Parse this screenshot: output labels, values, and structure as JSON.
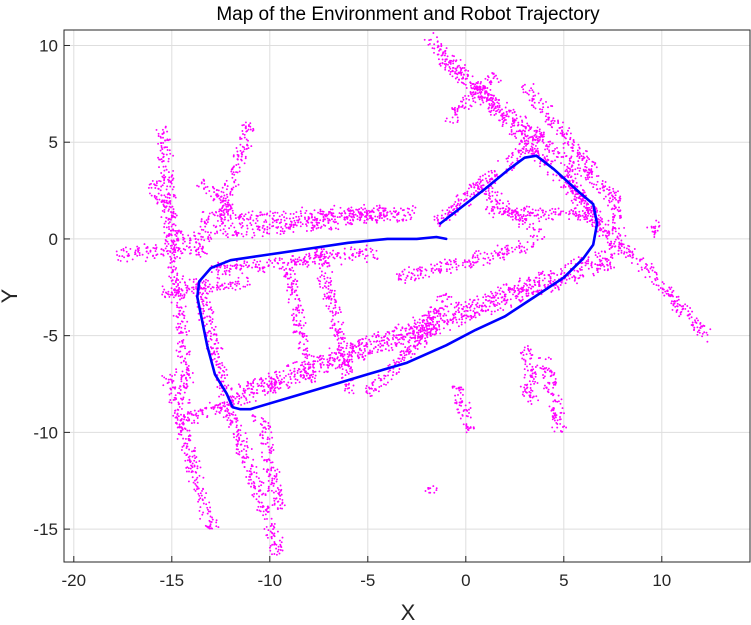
{
  "chart_data": {
    "type": "scatter",
    "title": "Map of the Environment and Robot Trajectory",
    "xlabel": "X",
    "ylabel": "Y",
    "xlim": [
      -20.5,
      14.5
    ],
    "ylim": [
      -16.7,
      10.8
    ],
    "xticks": [
      -20,
      -15,
      -10,
      -5,
      0,
      5,
      10
    ],
    "yticks": [
      10,
      5,
      0,
      -5,
      -10,
      -15
    ],
    "grid": true,
    "legend": "none",
    "series": [
      {
        "color": "#ff00ff",
        "marker": "dot",
        "walls": [
          [
            [
              -17.8,
              -0.8
            ],
            [
              -13.2,
              -0.5
            ]
          ],
          [
            [
              -14.8,
              0.1
            ],
            [
              -6.5,
              0.9
            ]
          ],
          [
            [
              -13.5,
              1.0
            ],
            [
              -4.0,
              1.4
            ]
          ],
          [
            [
              -6.5,
              1.0
            ],
            [
              -2.5,
              1.4
            ]
          ],
          [
            [
              -13.0,
              -1.6
            ],
            [
              -4.5,
              -0.7
            ]
          ],
          [
            [
              -15.5,
              -2.8
            ],
            [
              -11.0,
              -2.2
            ]
          ],
          [
            [
              -15.5,
              5.8
            ],
            [
              -14.2,
              -8.5
            ]
          ],
          [
            [
              -15.2,
              -7.0
            ],
            [
              -13.0,
              -15.0
            ]
          ],
          [
            [
              -13.7,
              -2.0
            ],
            [
              -12.0,
              -9.2
            ]
          ],
          [
            [
              -11.5,
              -7.8
            ],
            [
              8.0,
              -0.5
            ]
          ],
          [
            [
              -14.8,
              -9.5
            ],
            [
              7.5,
              -1.2
            ]
          ],
          [
            [
              -12.0,
              -9.0
            ],
            [
              -9.5,
              -16.3
            ]
          ],
          [
            [
              -10.5,
              -9.0
            ],
            [
              -9.5,
              -14.0
            ]
          ],
          [
            [
              -7.5,
              -0.4
            ],
            [
              -5.8,
              -8.0
            ]
          ],
          [
            [
              -9.0,
              -1.5
            ],
            [
              -8.0,
              -7.5
            ]
          ],
          [
            [
              -3.5,
              -2.0
            ],
            [
              3.5,
              -0.3
            ]
          ],
          [
            [
              -5.0,
              -8.0
            ],
            [
              -1.5,
              -4.5
            ]
          ],
          [
            [
              -3.0,
              -6.0
            ],
            [
              -1.0,
              -2.8
            ]
          ],
          [
            [
              -2.0,
              10.6
            ],
            [
              12.5,
              -5.2
            ]
          ],
          [
            [
              -1.2,
              9.2
            ],
            [
              7.5,
              2.2
            ]
          ],
          [
            [
              -1.5,
              0.8
            ],
            [
              4.0,
              5.5
            ]
          ],
          [
            [
              1.0,
              1.5
            ],
            [
              6.5,
              1.2
            ]
          ],
          [
            [
              3.0,
              8.0
            ],
            [
              6.5,
              3.5
            ]
          ],
          [
            [
              -1.0,
              6.0
            ],
            [
              1.5,
              8.5
            ]
          ],
          [
            [
              0.5,
              3.0
            ],
            [
              4.0,
              0.0
            ]
          ],
          [
            [
              5.0,
              3.5
            ],
            [
              7.5,
              -0.5
            ]
          ],
          [
            [
              7.5,
              2.5
            ],
            [
              7.8,
              0.5
            ]
          ],
          [
            [
              9.5,
              0.8
            ],
            [
              10.0,
              0.2
            ]
          ],
          [
            [
              -11.0,
              6.0
            ],
            [
              -12.5,
              1.0
            ]
          ],
          [
            [
              -16.0,
              3.0
            ],
            [
              -15.0,
              1.0
            ]
          ],
          [
            [
              -13.5,
              3.0
            ],
            [
              -12.0,
              1.5
            ]
          ],
          [
            [
              -0.5,
              -7.5
            ],
            [
              0.2,
              -10.0
            ]
          ],
          [
            [
              3.0,
              -5.5
            ],
            [
              3.5,
              -7.5
            ]
          ],
          [
            [
              4.0,
              -6.0
            ],
            [
              4.8,
              -10.0
            ]
          ],
          [
            [
              3.0,
              -7.5
            ],
            [
              3.5,
              -8.5
            ]
          ],
          [
            [
              -1.8,
              -12.8
            ],
            [
              -1.6,
              -13.2
            ]
          ]
        ]
      },
      {
        "color": "#0000ff",
        "marker": "line",
        "x": [
          -1.3,
          -0.4,
          1.0,
          2.2,
          3.0,
          3.6,
          4.5,
          5.8,
          6.5,
          6.7,
          6.5,
          6.0,
          5.0,
          3.5,
          2.0,
          0.5,
          -1.0,
          -3.0,
          -5.0,
          -7.0,
          -9.0,
          -11.0,
          -11.5,
          -11.9,
          -12.2,
          -12.8,
          -13.2,
          -13.5,
          -13.7,
          -13.6,
          -13.0,
          -12.0,
          -10.0,
          -8.0,
          -6.0,
          -4.0,
          -2.5,
          -1.5,
          -1.0
        ],
        "y": [
          0.8,
          1.5,
          2.6,
          3.6,
          4.2,
          4.3,
          3.6,
          2.4,
          1.8,
          0.8,
          -0.3,
          -1.0,
          -2.0,
          -3.0,
          -4.0,
          -4.7,
          -5.5,
          -6.4,
          -7.0,
          -7.6,
          -8.2,
          -8.8,
          -8.8,
          -8.7,
          -8.0,
          -7.0,
          -5.5,
          -4.0,
          -3.0,
          -2.2,
          -1.5,
          -1.1,
          -0.8,
          -0.5,
          -0.2,
          0.0,
          0.0,
          0.1,
          0.0
        ]
      }
    ]
  }
}
